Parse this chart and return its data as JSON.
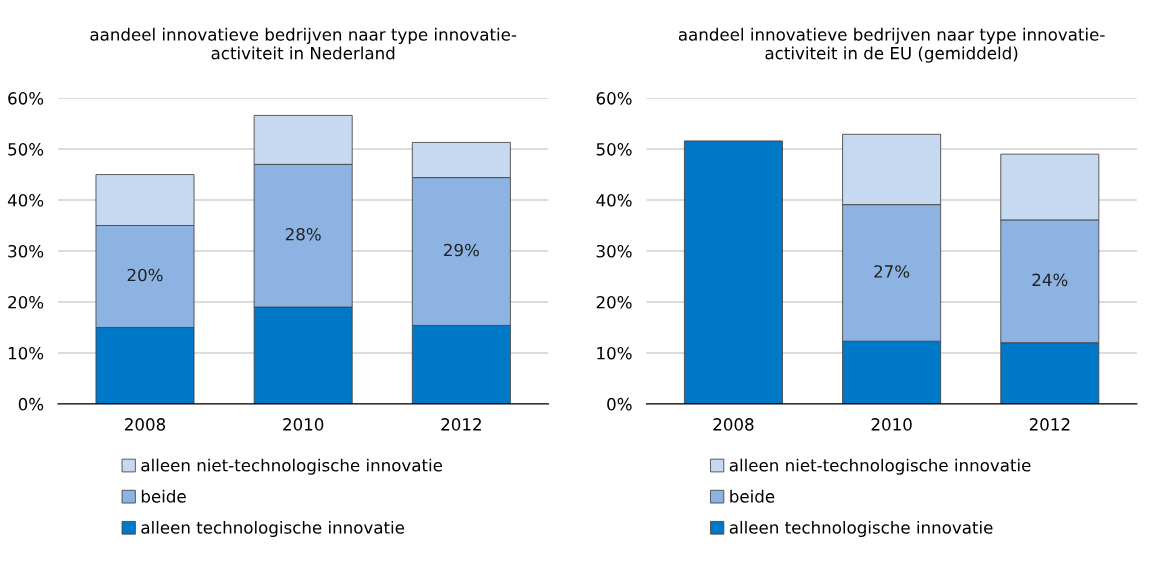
{
  "chart_data": [
    {
      "type": "bar",
      "title": "aandeel innovatieve bedrijven naar type innovatie-\nactiviteit in Nederland",
      "categories": [
        "2008",
        "2010",
        "2012"
      ],
      "stacked": true,
      "grid": "y",
      "legend": "bottom",
      "ylim": [
        0,
        60
      ],
      "yticks": [
        {
          "value": 0,
          "label": "0%"
        },
        {
          "value": 10,
          "label": "10%"
        },
        {
          "value": 20,
          "label": "20%"
        },
        {
          "value": 30,
          "label": "30%"
        },
        {
          "value": 40,
          "label": "40%"
        },
        {
          "value": 50,
          "label": "50%"
        },
        {
          "value": 60,
          "label": "60%"
        }
      ],
      "series": [
        {
          "name": "alleen technologische innovatie",
          "color": "#0078c8",
          "values": [
            15,
            19,
            15.4
          ]
        },
        {
          "name": "beide",
          "color": "#8db3e2",
          "values": [
            20,
            28,
            29
          ],
          "value_labels": [
            "20%",
            "28%",
            "29%"
          ]
        },
        {
          "name": "alleen niet-technologische innovatie",
          "color": "#c6d9f1",
          "values": [
            10,
            9.6,
            6.9
          ]
        }
      ]
    },
    {
      "type": "bar",
      "title": "aandeel innovatieve bedrijven naar type innovatie-\nactiviteit in de EU (gemiddeld)",
      "categories": [
        "2008",
        "2010",
        "2012"
      ],
      "stacked": true,
      "grid": "y",
      "legend": "bottom",
      "ylim": [
        0,
        60
      ],
      "yticks": [
        {
          "value": 0,
          "label": "0%"
        },
        {
          "value": 10,
          "label": "10%"
        },
        {
          "value": 20,
          "label": "20%"
        },
        {
          "value": 30,
          "label": "30%"
        },
        {
          "value": 40,
          "label": "40%"
        },
        {
          "value": 50,
          "label": "50%"
        },
        {
          "value": 60,
          "label": "60%"
        }
      ],
      "series": [
        {
          "name": "alleen technologische innovatie",
          "color": "#0078c8",
          "values": [
            51.6,
            12.3,
            12.0
          ]
        },
        {
          "name": "beide",
          "color": "#8db3e2",
          "values": [
            null,
            26.8,
            24.1
          ],
          "value_labels": [
            null,
            "27%",
            "24%"
          ]
        },
        {
          "name": "alleen niet-technologische innovatie",
          "color": "#c6d9f1",
          "values": [
            null,
            13.8,
            12.9
          ]
        }
      ]
    }
  ]
}
